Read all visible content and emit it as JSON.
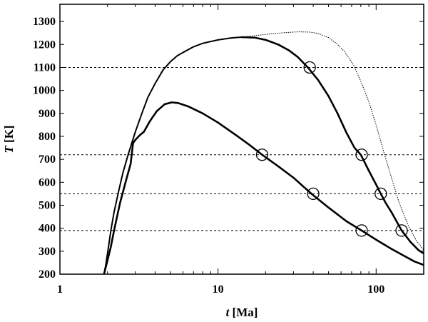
{
  "chart_data": {
    "type": "line",
    "xlabel": {
      "var": "t",
      "unit": " [Ma]"
    },
    "ylabel": {
      "var": "T",
      "unit": " [K]"
    },
    "xscale": "log",
    "xlim": [
      1,
      200
    ],
    "ylim": [
      200,
      1375
    ],
    "x_ticks": [
      1,
      10,
      100
    ],
    "x_tick_labels": [
      "1",
      "10",
      "100"
    ],
    "y_ticks": [
      200,
      300,
      400,
      500,
      600,
      700,
      800,
      900,
      1000,
      1100,
      1200,
      1300
    ],
    "y_tick_labels": [
      "200",
      "300",
      "400",
      "500",
      "600",
      "700",
      "800",
      "900",
      "1000",
      "1100",
      "1200",
      "1300"
    ],
    "reference_lines": [
      1100,
      720,
      550,
      390
    ],
    "series": [
      {
        "style": "solid-thin",
        "x": [
          1.9,
          1.95,
          2.0,
          2.1,
          2.2,
          2.35,
          2.5,
          2.7,
          3.0,
          3.3,
          3.6,
          4.0,
          4.5,
          5.0,
          5.5,
          6.0,
          7.0,
          8.0,
          10.0,
          12.0,
          14.0
        ],
        "y": [
          200,
          240,
          290,
          390,
          470,
          560,
          640,
          720,
          820,
          900,
          970,
          1030,
          1090,
          1125,
          1150,
          1165,
          1190,
          1205,
          1220,
          1228,
          1232
        ]
      },
      {
        "style": "dotted",
        "x": [
          14,
          18,
          22,
          27,
          32,
          38,
          43,
          50,
          56,
          63,
          72,
          80,
          90,
          100,
          112,
          125,
          140,
          160,
          180,
          200
        ],
        "y": [
          1232,
          1240,
          1247,
          1252,
          1255,
          1254,
          1248,
          1230,
          1205,
          1170,
          1110,
          1040,
          950,
          850,
          730,
          620,
          510,
          410,
          345,
          305
        ]
      },
      {
        "style": "solid-thick",
        "x": [
          14,
          17,
          20,
          24,
          28,
          32,
          37,
          43,
          50,
          57,
          65,
          73,
          80,
          90,
          100,
          107,
          115,
          125,
          145,
          165,
          185,
          200
        ],
        "y": [
          1232,
          1230,
          1220,
          1200,
          1175,
          1145,
          1100,
          1045,
          975,
          900,
          815,
          750,
          720,
          650,
          590,
          550,
          510,
          470,
          390,
          340,
          305,
          290
        ]
      },
      {
        "style": "solid-thick",
        "x": [
          1.9,
          2.0,
          2.1,
          2.2,
          2.4,
          2.6,
          2.8,
          2.9,
          3.0,
          3.2,
          3.4,
          3.7,
          4.1,
          4.6,
          5.1,
          5.6,
          6.5,
          8.0,
          10.0,
          13.0,
          16.0,
          19.0,
          24.0,
          30.0,
          39.0,
          50.0,
          65.0,
          81.0,
          100.0,
          125.0,
          150.0,
          175.0,
          200.0
        ],
        "y": [
          200,
          260,
          320,
          390,
          510,
          600,
          680,
          770,
          785,
          805,
          820,
          865,
          910,
          940,
          948,
          945,
          930,
          900,
          860,
          805,
          760,
          720,
          670,
          620,
          550,
          490,
          430,
          390,
          350,
          310,
          280,
          255,
          240
        ]
      }
    ],
    "markers": [
      {
        "x": 38,
        "y": 1100
      },
      {
        "x": 19,
        "y": 720
      },
      {
        "x": 81,
        "y": 720
      },
      {
        "x": 40,
        "y": 550
      },
      {
        "x": 107,
        "y": 550
      },
      {
        "x": 81,
        "y": 390
      },
      {
        "x": 145,
        "y": 390
      }
    ]
  }
}
